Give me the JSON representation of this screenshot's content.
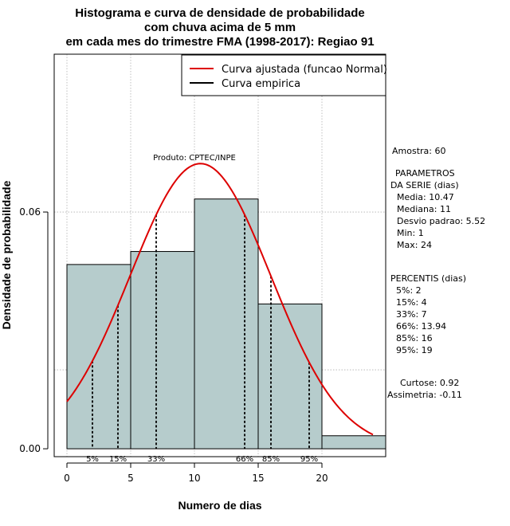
{
  "chart_data": {
    "type": "bar",
    "title": [
      "Histograma e curva de densidade de probabilidade",
      "com chuva acima de 5 mm",
      "em cada mes do trimestre FMA (1998-2017): Regiao 91"
    ],
    "xlabel": "Numero de dias",
    "ylabel": "Densidade de probabilidade",
    "xlim": [
      -1,
      25
    ],
    "ylim": [
      -0.002,
      0.1
    ],
    "xticks": [
      0,
      5,
      10,
      15,
      20
    ],
    "yticks": [
      0.0,
      0.06
    ],
    "ytick_labels": [
      "0.00",
      "0.06"
    ],
    "grid": true,
    "grid_x": [
      0,
      5,
      10,
      15,
      20
    ],
    "grid_y": [
      0.02,
      0.06,
      0.1
    ],
    "bin_edges": [
      0,
      5,
      10,
      15,
      20,
      25
    ],
    "densities": [
      0.0467,
      0.05,
      0.0633,
      0.0367,
      0.0033
    ],
    "bar_color": "#b6cccc",
    "normal_curve": {
      "mean": 10.47,
      "sd": 5.52,
      "x_range": [
        0,
        24
      ],
      "color": "#dd0000"
    },
    "percentiles": [
      {
        "label": "5%",
        "value": 2
      },
      {
        "label": "15%",
        "value": 4
      },
      {
        "label": "33%",
        "value": 7
      },
      {
        "label": "66%",
        "value": 13.94
      },
      {
        "label": "85%",
        "value": 16
      },
      {
        "label": "95%",
        "value": 19
      }
    ],
    "legend": {
      "position": "top-right",
      "entries": [
        {
          "label": "Curva ajustada (funcao Normal)",
          "color": "#dd0000"
        },
        {
          "label": "Curva empirica",
          "color": "#000000"
        }
      ]
    },
    "annotation": "Produto: CPTEC/INPE"
  },
  "stats_panel": {
    "amostra": "Amostra: 60",
    "params_header": [
      "PARAMETROS",
      "DA SERIE (dias)"
    ],
    "params": [
      "Media: 10.47",
      "Mediana: 11",
      "Desvio padrao: 5.52",
      "Min: 1",
      "Max: 24"
    ],
    "percentis_header": "PERCENTIS (dias)",
    "percentis": [
      "5%: 2",
      "15%: 4",
      "33%: 7",
      "66%: 13.94",
      "85%: 16",
      "95%: 19"
    ],
    "curtose": "Curtose: 0.92",
    "assimetria": "Assimetria: -0.11"
  }
}
